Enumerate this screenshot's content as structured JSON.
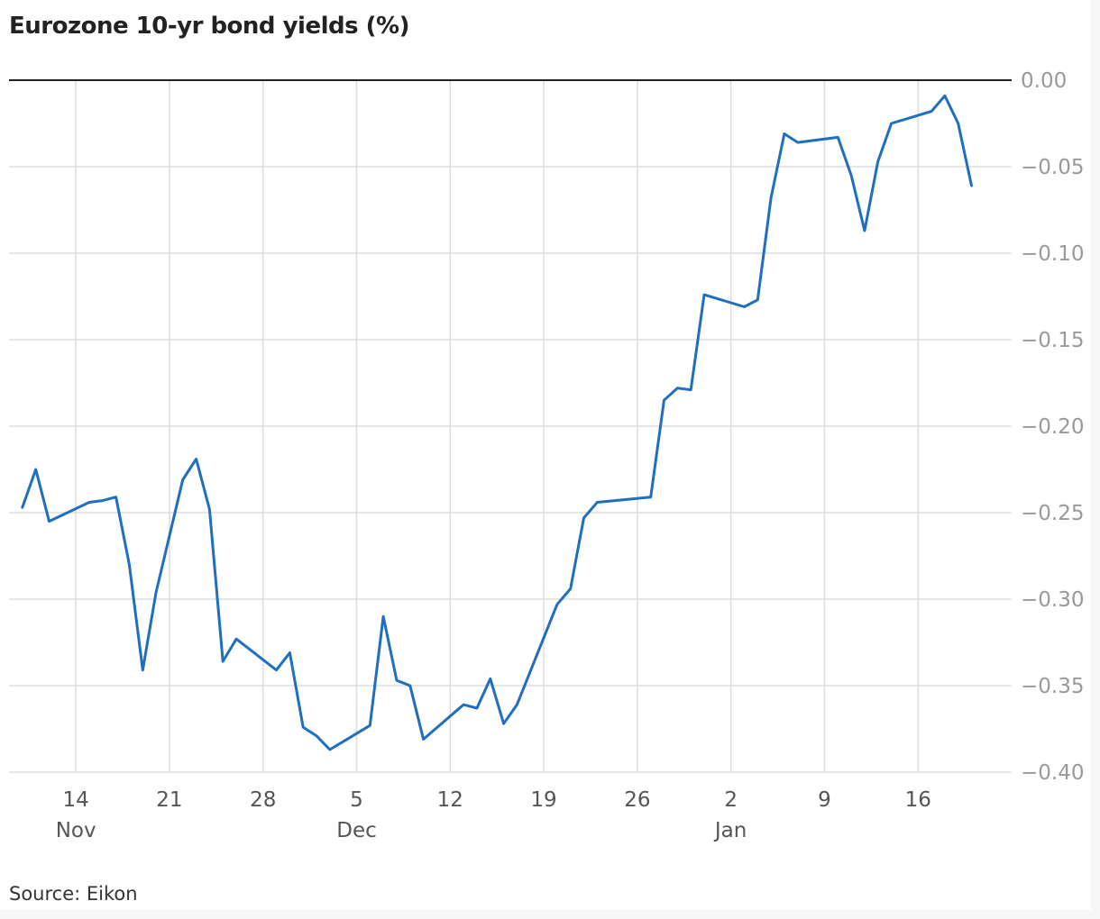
{
  "header": {
    "title": "Eurozone 10-yr bond yields (%)"
  },
  "footer": {
    "source": "Source: Eikon"
  },
  "colors": {
    "line": "#1f6ebf",
    "grid": "#dddddd",
    "baseline": "#222222",
    "axis_text": "#999999",
    "x_text": "#555555"
  },
  "chart_data": {
    "type": "line",
    "title": "Eurozone 10-yr bond yields (%)",
    "xlabel": "",
    "ylabel": "",
    "ylim": [
      -0.4,
      0.0
    ],
    "xlim": [
      "2019-11-09",
      "2020-01-23"
    ],
    "y_ticks": [
      0.0,
      -0.05,
      -0.1,
      -0.15,
      -0.2,
      -0.25,
      -0.3,
      -0.35,
      -0.4
    ],
    "y_tick_labels": [
      "0.00",
      "−0.05",
      "−0.10",
      "−0.15",
      "−0.20",
      "−0.25",
      "−0.30",
      "−0.35",
      "−0.40"
    ],
    "x_ticks": [
      {
        "date": "2019-11-14",
        "label": "14",
        "month": "Nov"
      },
      {
        "date": "2019-11-21",
        "label": "21",
        "month": ""
      },
      {
        "date": "2019-11-28",
        "label": "28",
        "month": ""
      },
      {
        "date": "2019-12-05",
        "label": "5",
        "month": "Dec"
      },
      {
        "date": "2019-12-12",
        "label": "12",
        "month": ""
      },
      {
        "date": "2019-12-19",
        "label": "19",
        "month": ""
      },
      {
        "date": "2019-12-26",
        "label": "26",
        "month": ""
      },
      {
        "date": "2020-01-02",
        "label": "2",
        "month": "Jan"
      },
      {
        "date": "2020-01-09",
        "label": "9",
        "month": ""
      },
      {
        "date": "2020-01-16",
        "label": "16",
        "month": ""
      }
    ],
    "grid": true,
    "legend": "none",
    "series": [
      {
        "x": [
          "2019-11-10",
          "2019-11-11",
          "2019-11-12",
          "2019-11-15",
          "2019-11-16",
          "2019-11-17",
          "2019-11-18",
          "2019-11-19",
          "2019-11-20",
          "2019-11-22",
          "2019-11-23",
          "2019-11-24",
          "2019-11-25",
          "2019-11-26",
          "2019-11-29",
          "2019-11-30",
          "2019-12-01",
          "2019-12-02",
          "2019-12-03",
          "2019-12-06",
          "2019-12-07",
          "2019-12-08",
          "2019-12-09",
          "2019-12-10",
          "2019-12-13",
          "2019-12-14",
          "2019-12-15",
          "2019-12-16",
          "2019-12-17",
          "2019-12-20",
          "2019-12-21",
          "2019-12-22",
          "2019-12-23",
          "2019-12-27",
          "2019-12-28",
          "2019-12-29",
          "2019-12-30",
          "2019-12-31",
          "2020-01-03",
          "2020-01-04",
          "2020-01-05",
          "2020-01-06",
          "2020-01-07",
          "2020-01-10",
          "2020-01-11",
          "2020-01-12",
          "2020-01-13",
          "2020-01-14",
          "2020-01-17",
          "2020-01-18",
          "2020-01-19",
          "2020-01-20",
          "2020-01-21"
        ],
        "values": [
          -0.247,
          -0.225,
          -0.255,
          -0.244,
          -0.243,
          -0.241,
          -0.28,
          -0.341,
          -0.296,
          -0.231,
          -0.219,
          -0.248,
          -0.336,
          -0.323,
          -0.341,
          -0.331,
          -0.374,
          -0.379,
          -0.387,
          -0.373,
          -0.31,
          -0.347,
          -0.35,
          -0.381,
          -0.361,
          -0.363,
          -0.346,
          -0.372,
          -0.361,
          -0.303,
          -0.294,
          -0.253,
          -0.244,
          -0.241,
          -0.185,
          -0.178,
          -0.179,
          -0.124,
          -0.131,
          -0.127,
          -0.068,
          -0.031,
          -0.036,
          -0.033,
          -0.055,
          -0.087,
          -0.047,
          -0.025,
          -0.018,
          -0.009,
          -0.025,
          -0.061,
          null
        ]
      }
    ]
  }
}
